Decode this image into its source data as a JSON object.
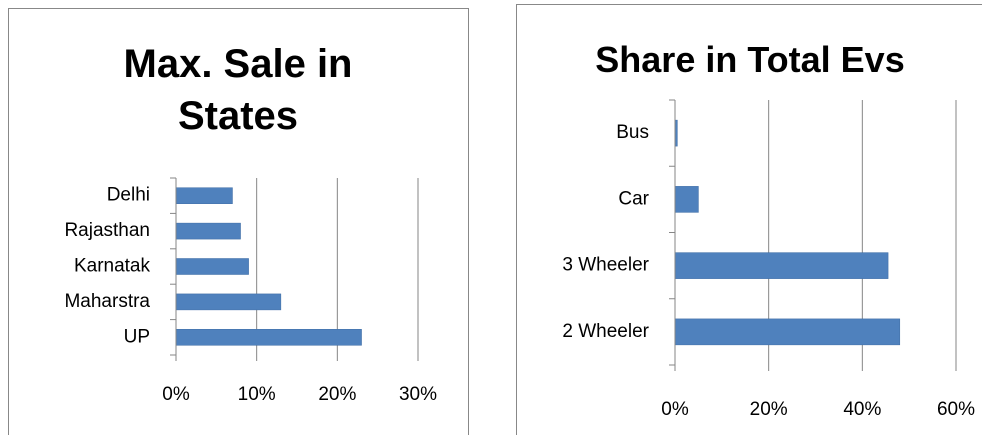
{
  "chart_data": [
    {
      "type": "bar",
      "orientation": "horizontal",
      "title": "Max. Sale in States",
      "categories": [
        "UP",
        "Maharstra",
        "Karnatak",
        "Rajasthan",
        "Delhi"
      ],
      "values": [
        23,
        13,
        9,
        8,
        7
      ],
      "color": "#4f81bd",
      "xlim": [
        0,
        30
      ],
      "xticks": [
        {
          "value": 0,
          "label": "0%"
        },
        {
          "value": 10,
          "label": "10%"
        },
        {
          "value": 20,
          "label": "20%"
        },
        {
          "value": 30,
          "label": "30%"
        }
      ],
      "grid": true
    },
    {
      "type": "bar",
      "orientation": "horizontal",
      "title": "Share in Total Evs",
      "categories": [
        "2 Wheeler",
        "3 Wheeler",
        "Car",
        "Bus"
      ],
      "values": [
        48,
        45.5,
        5,
        0.5
      ],
      "color": "#4f81bd",
      "xlim": [
        0,
        60
      ],
      "xticks": [
        {
          "value": 0,
          "label": "0%"
        },
        {
          "value": 20,
          "label": "20%"
        },
        {
          "value": 40,
          "label": "40%"
        },
        {
          "value": 60,
          "label": "60%"
        }
      ],
      "grid": true
    }
  ]
}
